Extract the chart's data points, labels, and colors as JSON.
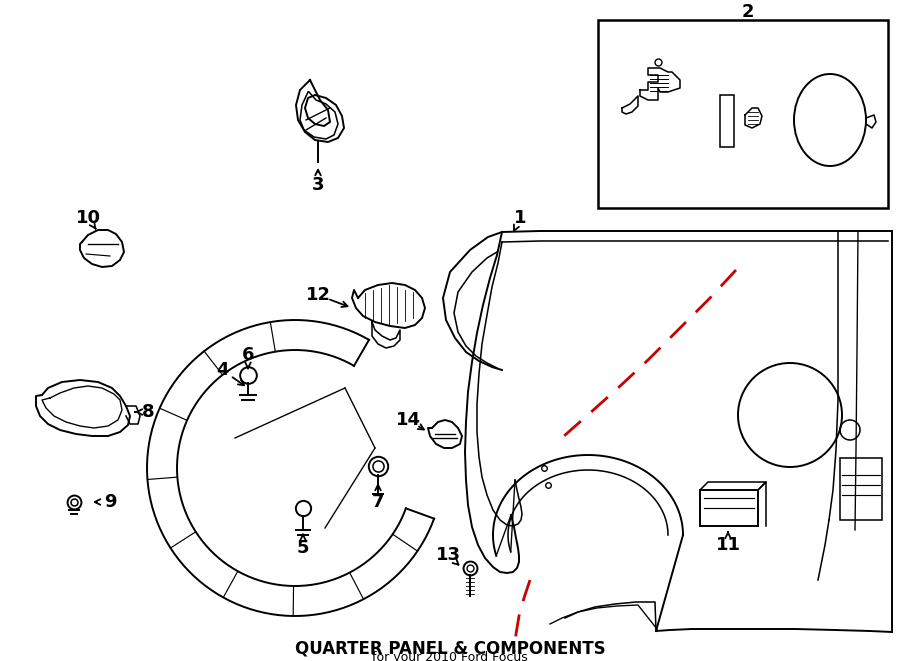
{
  "title": "QUARTER PANEL & COMPONENTS",
  "subtitle": "for your 2010 Ford Focus",
  "bg_color": "#ffffff",
  "line_color": "#000000",
  "red_dashed_color": "#cc0000",
  "fig_w": 9.0,
  "fig_h": 6.61,
  "dpi": 100
}
